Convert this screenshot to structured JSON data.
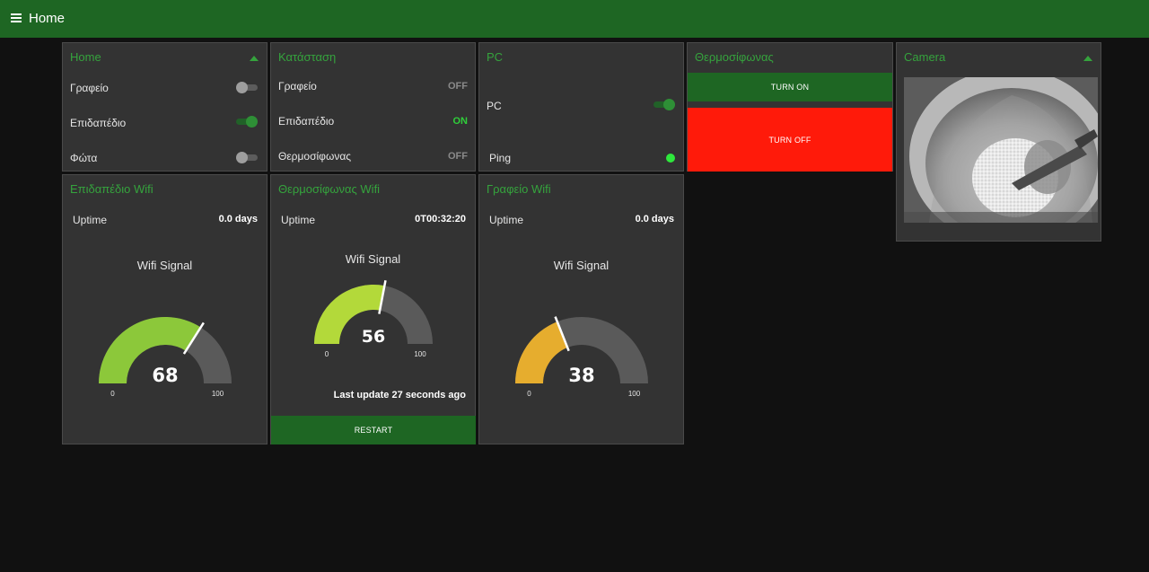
{
  "header": {
    "title": "Home",
    "menu_icon": "hamburger-menu-icon"
  },
  "cards": {
    "home": {
      "title": "Home",
      "rows": [
        {
          "label": "Γραφείο",
          "state": "off"
        },
        {
          "label": "Επιδαπέδιο",
          "state": "on"
        },
        {
          "label": "Φώτα",
          "state": "off"
        }
      ]
    },
    "status": {
      "title": "Κατάσταση",
      "rows": [
        {
          "label": "Γραφείο",
          "value": "OFF"
        },
        {
          "label": "Επιδαπέδιο",
          "value": "ON"
        },
        {
          "label": "Θερμοσίφωνας",
          "value": "OFF"
        }
      ]
    },
    "pc": {
      "title": "PC",
      "switch_label": "PC",
      "switch_state": "on",
      "ping_label": "Ping",
      "ping_color": "#2ee83c"
    },
    "heater": {
      "title": "Θερμοσίφωνας",
      "turn_on_label": "TURN ON",
      "turn_off_label": "TURN OFF",
      "turn_on_color": "#1e6623",
      "turn_off_color": "#ff1a0a"
    },
    "camera": {
      "title": "Camera"
    },
    "floor_wifi": {
      "title": "Επιδαπέδιο Wifi",
      "uptime_label": "Uptime",
      "uptime_value": "0.0 days",
      "gauge_title": "Wifi Signal",
      "gauge": {
        "value": 68,
        "min": 0,
        "max": 100,
        "value_label": "68",
        "min_label": "0",
        "max_label": "100",
        "color": "#8cc83a"
      }
    },
    "heater_wifi": {
      "title": "Θερμοσίφωνας Wifi",
      "uptime_label": "Uptime",
      "uptime_value": "0T00:32:20",
      "gauge_title": "Wifi Signal",
      "gauge": {
        "value": 56,
        "min": 0,
        "max": 100,
        "value_label": "56",
        "min_label": "0",
        "max_label": "100",
        "color": "#b3d93a"
      },
      "last_update": "Last update 27 seconds ago",
      "restart_label": "RESTART",
      "restart_color": "#1e6623"
    },
    "office_wifi": {
      "title": "Γραφείο Wifi",
      "uptime_label": "Uptime",
      "uptime_value": "0.0 days",
      "gauge_title": "Wifi Signal",
      "gauge": {
        "value": 38,
        "min": 0,
        "max": 100,
        "value_label": "38",
        "min_label": "0",
        "max_label": "100",
        "color": "#e6ad2e"
      }
    }
  },
  "colors": {
    "accent": "#35a33d",
    "topbar": "#1e6623",
    "card_bg": "#333333",
    "page_bg": "#111111",
    "gauge_track": "#5a5a5a"
  }
}
